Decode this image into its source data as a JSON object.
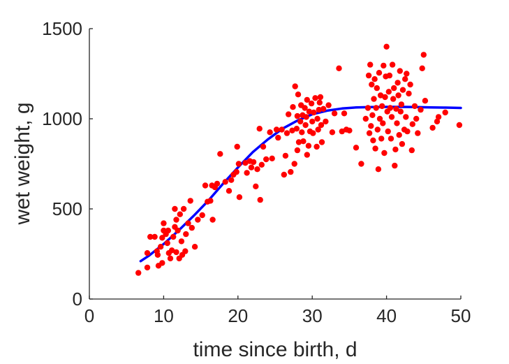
{
  "chart_data": {
    "type": "scatter",
    "title": "",
    "xlabel": "time since birth, d",
    "ylabel": "wet weight, g",
    "xlim": [
      0,
      50
    ],
    "ylim": [
      0,
      1500
    ],
    "xticks": [
      0,
      10,
      20,
      30,
      40,
      50
    ],
    "yticks": [
      0,
      500,
      1000,
      1500
    ],
    "grid": false,
    "legend": "none",
    "series": [
      {
        "kind": "scatter",
        "color": "#ff0000",
        "points": [
          [
            6.6,
            145
          ],
          [
            7.8,
            175
          ],
          [
            7.8,
            255
          ],
          [
            8.2,
            345
          ],
          [
            8.8,
            345
          ],
          [
            9.1,
            265
          ],
          [
            9.2,
            245
          ],
          [
            9.3,
            185
          ],
          [
            9.6,
            290
          ],
          [
            9.8,
            200
          ],
          [
            9.8,
            340
          ],
          [
            10.0,
            380
          ],
          [
            10.0,
            420
          ],
          [
            10.3,
            360
          ],
          [
            10.5,
            310
          ],
          [
            10.6,
            380
          ],
          [
            10.7,
            255
          ],
          [
            10.9,
            225
          ],
          [
            11.1,
            270
          ],
          [
            11.3,
            345
          ],
          [
            11.5,
            400
          ],
          [
            11.5,
            500
          ],
          [
            11.7,
            260
          ],
          [
            11.7,
            440
          ],
          [
            11.9,
            380
          ],
          [
            12.1,
            225
          ],
          [
            12.2,
            470
          ],
          [
            12.4,
            320
          ],
          [
            12.5,
            245
          ],
          [
            12.7,
            500
          ],
          [
            12.9,
            265
          ],
          [
            13.0,
            360
          ],
          [
            13.3,
            420
          ],
          [
            13.6,
            545
          ],
          [
            13.8,
            395
          ],
          [
            14.2,
            290
          ],
          [
            14.6,
            440
          ],
          [
            15.2,
            465
          ],
          [
            15.6,
            630
          ],
          [
            15.9,
            540
          ],
          [
            16.3,
            545
          ],
          [
            16.5,
            630
          ],
          [
            16.6,
            440
          ],
          [
            16.9,
            620
          ],
          [
            17.2,
            640
          ],
          [
            17.6,
            805
          ],
          [
            18.3,
            650
          ],
          [
            18.8,
            600
          ],
          [
            19.1,
            660
          ],
          [
            19.4,
            690
          ],
          [
            19.8,
            705
          ],
          [
            19.9,
            845
          ],
          [
            20.1,
            750
          ],
          [
            20.2,
            565
          ],
          [
            21.0,
            755
          ],
          [
            21.2,
            700
          ],
          [
            21.6,
            765
          ],
          [
            21.8,
            730
          ],
          [
            22.1,
            760
          ],
          [
            22.4,
            625
          ],
          [
            22.6,
            720
          ],
          [
            22.9,
            945
          ],
          [
            23.0,
            550
          ],
          [
            23.2,
            745
          ],
          [
            23.4,
            845
          ],
          [
            23.8,
            775
          ],
          [
            24.3,
            925
          ],
          [
            24.6,
            780
          ],
          [
            25.2,
            940
          ],
          [
            25.4,
            895
          ],
          [
            25.9,
            940
          ],
          [
            26.2,
            690
          ],
          [
            26.4,
            795
          ],
          [
            26.6,
            920
          ],
          [
            26.8,
            1025
          ],
          [
            27.1,
            705
          ],
          [
            27.3,
            935
          ],
          [
            27.4,
            1065
          ],
          [
            27.6,
            750
          ],
          [
            27.7,
            1180
          ],
          [
            27.9,
            945
          ],
          [
            28.0,
            825
          ],
          [
            28.0,
            1015
          ],
          [
            28.1,
            1135
          ],
          [
            28.2,
            870
          ],
          [
            28.4,
            985
          ],
          [
            28.5,
            1075
          ],
          [
            28.6,
            925
          ],
          [
            28.7,
            1020
          ],
          [
            28.8,
            875
          ],
          [
            29.0,
            1060
          ],
          [
            29.1,
            965
          ],
          [
            29.2,
            1010
          ],
          [
            29.3,
            800
          ],
          [
            29.3,
            1105
          ],
          [
            29.5,
            850
          ],
          [
            29.6,
            1040
          ],
          [
            29.7,
            930
          ],
          [
            29.9,
            1085
          ],
          [
            30.0,
            985
          ],
          [
            30.1,
            920
          ],
          [
            30.2,
            1035
          ],
          [
            30.4,
            1115
          ],
          [
            30.6,
            845
          ],
          [
            30.7,
            1000
          ],
          [
            30.8,
            940
          ],
          [
            30.9,
            1050
          ],
          [
            31.0,
            1090
          ],
          [
            31.1,
            1120
          ],
          [
            31.2,
            965
          ],
          [
            31.3,
            870
          ],
          [
            31.5,
            1055
          ],
          [
            31.8,
            985
          ],
          [
            32.2,
            1075
          ],
          [
            32.7,
            925
          ],
          [
            33.0,
            1030
          ],
          [
            33.6,
            1280
          ],
          [
            34.0,
            930
          ],
          [
            34.3,
            1030
          ],
          [
            34.6,
            940
          ],
          [
            35.0,
            935
          ],
          [
            35.9,
            840
          ],
          [
            36.6,
            750
          ],
          [
            37.2,
            1000
          ],
          [
            37.5,
            1060
          ],
          [
            37.6,
            1240
          ],
          [
            37.7,
            920
          ],
          [
            37.8,
            1300
          ],
          [
            37.9,
            960
          ],
          [
            38.0,
            1190
          ],
          [
            38.1,
            1020
          ],
          [
            38.2,
            880
          ],
          [
            38.3,
            1110
          ],
          [
            38.4,
            1220
          ],
          [
            38.5,
            835
          ],
          [
            38.6,
            1060
          ],
          [
            38.7,
            1170
          ],
          [
            38.8,
            940
          ],
          [
            38.9,
            720
          ],
          [
            39.0,
            1255
          ],
          [
            39.1,
            1000
          ],
          [
            39.2,
            1130
          ],
          [
            39.3,
            890
          ],
          [
            39.4,
            1070
          ],
          [
            39.5,
            975
          ],
          [
            39.6,
            1295
          ],
          [
            39.7,
            810
          ],
          [
            39.8,
            1120
          ],
          [
            39.9,
            1235
          ],
          [
            40.0,
            1400
          ],
          [
            40.1,
            1040
          ],
          [
            40.2,
            930
          ],
          [
            40.3,
            1150
          ],
          [
            40.4,
            1240
          ],
          [
            40.5,
            1060
          ],
          [
            40.6,
            890
          ],
          [
            40.7,
            1010
          ],
          [
            40.8,
            1300
          ],
          [
            40.9,
            1110
          ],
          [
            41.0,
            1170
          ],
          [
            41.1,
            740
          ],
          [
            41.2,
            830
          ],
          [
            41.3,
            1055
          ],
          [
            41.4,
            975
          ],
          [
            41.5,
            1200
          ],
          [
            41.6,
            1130
          ],
          [
            41.7,
            910
          ],
          [
            41.8,
            1265
          ],
          [
            41.9,
            1040
          ],
          [
            42.0,
            1080
          ],
          [
            42.1,
            860
          ],
          [
            42.2,
            1160
          ],
          [
            42.4,
            940
          ],
          [
            42.5,
            1220
          ],
          [
            42.6,
            1010
          ],
          [
            42.7,
            1250
          ],
          [
            42.8,
            930
          ],
          [
            43.0,
            1140
          ],
          [
            43.2,
            1190
          ],
          [
            43.4,
            825
          ],
          [
            43.5,
            970
          ],
          [
            43.8,
            1070
          ],
          [
            44.0,
            1000
          ],
          [
            44.2,
            920
          ],
          [
            44.6,
            1050
          ],
          [
            44.8,
            1280
          ],
          [
            45.0,
            1355
          ],
          [
            45.2,
            1100
          ],
          [
            46.2,
            950
          ],
          [
            46.8,
            985
          ],
          [
            47.0,
            1010
          ],
          [
            47.9,
            1035
          ],
          [
            49.8,
            965
          ]
        ]
      },
      {
        "kind": "line",
        "color": "#0000ff",
        "points": [
          [
            6.9,
            210
          ],
          [
            8,
            240
          ],
          [
            10,
            305
          ],
          [
            12,
            380
          ],
          [
            14,
            460
          ],
          [
            16,
            545
          ],
          [
            18,
            640
          ],
          [
            20,
            730
          ],
          [
            22,
            815
          ],
          [
            24,
            885
          ],
          [
            26,
            945
          ],
          [
            28,
            990
          ],
          [
            30,
            1025
          ],
          [
            32,
            1045
          ],
          [
            34,
            1057
          ],
          [
            36,
            1063
          ],
          [
            38,
            1065
          ],
          [
            40,
            1066
          ],
          [
            42,
            1066
          ],
          [
            44,
            1065
          ],
          [
            46,
            1063
          ],
          [
            48,
            1062
          ],
          [
            50,
            1060
          ]
        ]
      }
    ]
  }
}
